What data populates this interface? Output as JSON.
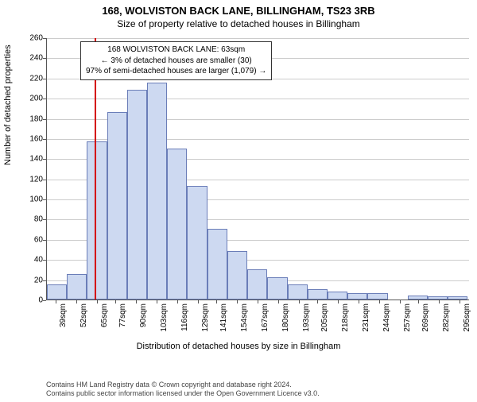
{
  "title_line1": "168, WOLVISTON BACK LANE, BILLINGHAM, TS23 3RB",
  "title_line2": "Size of property relative to detached houses in Billingham",
  "ylabel": "Number of detached properties",
  "xlabel": "Distribution of detached houses by size in Billingham",
  "annotation": {
    "line1": "168 WOLVISTON BACK LANE: 63sqm",
    "line2": "← 3% of detached houses are smaller (30)",
    "line3": "97% of semi-detached houses are larger (1,079) →"
  },
  "credits_line1": "Contains HM Land Registry data © Crown copyright and database right 2024.",
  "credits_line2": "Contains public sector information licensed under the Open Government Licence v3.0.",
  "chart": {
    "type": "histogram",
    "background_color": "#ffffff",
    "bar_fill": "#cdd9f1",
    "bar_stroke": "#6a7db8",
    "grid_color": "#cccccc",
    "axis_color": "#555555",
    "ref_line_color": "#d40000",
    "ref_line_x_value": 63,
    "ylim": [
      0,
      260
    ],
    "ytick_step": 20,
    "x_min": 33,
    "x_max": 301,
    "x_labels": [
      "39sqm",
      "52sqm",
      "65sqm",
      "77sqm",
      "90sqm",
      "103sqm",
      "116sqm",
      "129sqm",
      "141sqm",
      "154sqm",
      "167sqm",
      "180sqm",
      "193sqm",
      "205sqm",
      "218sqm",
      "231sqm",
      "244sqm",
      "257sqm",
      "269sqm",
      "282sqm",
      "295sqm"
    ],
    "x_tick_values": [
      39,
      52,
      65,
      77,
      90,
      103,
      116,
      129,
      141,
      154,
      167,
      180,
      193,
      205,
      218,
      231,
      244,
      257,
      269,
      282,
      295
    ],
    "bin_width": 12.7,
    "bin_starts": [
      33,
      45.7,
      58.4,
      71.1,
      83.8,
      96.5,
      109.2,
      121.9,
      134.6,
      147.3,
      160,
      172.7,
      185.4,
      198.1,
      210.8,
      223.5,
      236.2,
      248.9,
      261.6,
      274.3,
      287
    ],
    "bar_values": [
      15,
      25,
      157,
      186,
      208,
      215,
      150,
      113,
      70,
      48,
      30,
      22,
      15,
      10,
      8,
      6,
      6,
      0,
      4,
      3,
      3
    ],
    "title_fontsize": 13,
    "subtitle_fontsize": 12,
    "axis_label_fontsize": 11,
    "tick_fontsize": 10,
    "annotation_fontsize": 10,
    "credits_fontsize": 9
  }
}
